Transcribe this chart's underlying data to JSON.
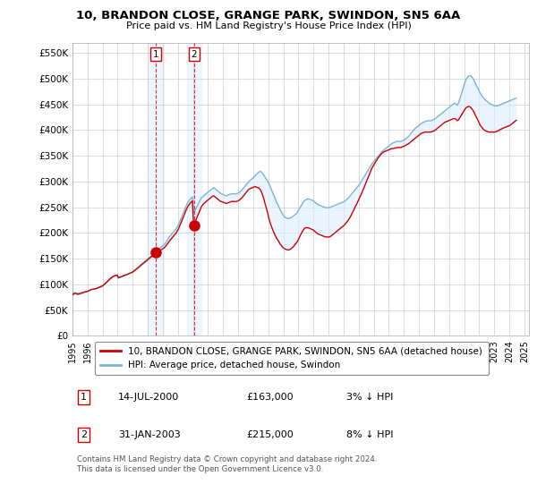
{
  "title": "10, BRANDON CLOSE, GRANGE PARK, SWINDON, SN5 6AA",
  "subtitle": "Price paid vs. HM Land Registry's House Price Index (HPI)",
  "yticks": [
    0,
    50000,
    100000,
    150000,
    200000,
    250000,
    300000,
    350000,
    400000,
    450000,
    500000,
    550000
  ],
  "ylim": [
    0,
    570000
  ],
  "xlim_start": 1995.0,
  "xlim_end": 2025.3,
  "hpi_color": "#7ab3d4",
  "price_color": "#cc0000",
  "bg_color": "#ffffff",
  "grid_color": "#cccccc",
  "shade_color": "#ddeeff",
  "transactions": [
    {
      "label": "1",
      "date_num": 2000.54,
      "price": 163000,
      "date_str": "14-JUL-2000",
      "pct": "3%",
      "direction": "↓"
    },
    {
      "label": "2",
      "date_num": 2003.08,
      "price": 215000,
      "date_str": "31-JAN-2003",
      "pct": "8%",
      "direction": "↓"
    }
  ],
  "legend_entries": [
    {
      "label": "10, BRANDON CLOSE, GRANGE PARK, SWINDON, SN5 6AA (detached house)",
      "color": "#cc0000"
    },
    {
      "label": "HPI: Average price, detached house, Swindon",
      "color": "#7ab3d4"
    }
  ],
  "footer": "Contains HM Land Registry data © Crown copyright and database right 2024.\nThis data is licensed under the Open Government Licence v3.0.",
  "hpi_years": [
    1995.04,
    1995.12,
    1995.21,
    1995.29,
    1995.38,
    1995.46,
    1995.54,
    1995.63,
    1995.71,
    1995.79,
    1995.88,
    1995.96,
    1996.04,
    1996.12,
    1996.21,
    1996.29,
    1996.38,
    1996.46,
    1996.54,
    1996.63,
    1996.71,
    1996.79,
    1996.88,
    1996.96,
    1997.04,
    1997.12,
    1997.21,
    1997.29,
    1997.38,
    1997.46,
    1997.54,
    1997.63,
    1997.71,
    1997.79,
    1997.88,
    1997.96,
    1998.04,
    1998.12,
    1998.21,
    1998.29,
    1998.38,
    1998.46,
    1998.54,
    1998.63,
    1998.71,
    1998.79,
    1998.88,
    1998.96,
    1999.04,
    1999.12,
    1999.21,
    1999.29,
    1999.38,
    1999.46,
    1999.54,
    1999.63,
    1999.71,
    1999.79,
    1999.88,
    1999.96,
    2000.04,
    2000.12,
    2000.21,
    2000.29,
    2000.38,
    2000.46,
    2000.54,
    2000.63,
    2000.71,
    2000.79,
    2000.88,
    2000.96,
    2001.04,
    2001.12,
    2001.21,
    2001.29,
    2001.38,
    2001.46,
    2001.54,
    2001.63,
    2001.71,
    2001.79,
    2001.88,
    2001.96,
    2002.04,
    2002.12,
    2002.21,
    2002.29,
    2002.38,
    2002.46,
    2002.54,
    2002.63,
    2002.71,
    2002.79,
    2002.88,
    2002.96,
    2003.04,
    2003.12,
    2003.21,
    2003.29,
    2003.38,
    2003.46,
    2003.54,
    2003.63,
    2003.71,
    2003.79,
    2003.88,
    2003.96,
    2004.04,
    2004.12,
    2004.21,
    2004.29,
    2004.38,
    2004.46,
    2004.54,
    2004.63,
    2004.71,
    2004.79,
    2004.88,
    2004.96,
    2005.04,
    2005.12,
    2005.21,
    2005.29,
    2005.38,
    2005.46,
    2005.54,
    2005.63,
    2005.71,
    2005.79,
    2005.88,
    2005.96,
    2006.04,
    2006.12,
    2006.21,
    2006.29,
    2006.38,
    2006.46,
    2006.54,
    2006.63,
    2006.71,
    2006.79,
    2006.88,
    2006.96,
    2007.04,
    2007.12,
    2007.21,
    2007.29,
    2007.38,
    2007.46,
    2007.54,
    2007.63,
    2007.71,
    2007.79,
    2007.88,
    2007.96,
    2008.04,
    2008.12,
    2008.21,
    2008.29,
    2008.38,
    2008.46,
    2008.54,
    2008.63,
    2008.71,
    2008.79,
    2008.88,
    2008.96,
    2009.04,
    2009.12,
    2009.21,
    2009.29,
    2009.38,
    2009.46,
    2009.54,
    2009.63,
    2009.71,
    2009.79,
    2009.88,
    2009.96,
    2010.04,
    2010.12,
    2010.21,
    2010.29,
    2010.38,
    2010.46,
    2010.54,
    2010.63,
    2010.71,
    2010.79,
    2010.88,
    2010.96,
    2011.04,
    2011.12,
    2011.21,
    2011.29,
    2011.38,
    2011.46,
    2011.54,
    2011.63,
    2011.71,
    2011.79,
    2011.88,
    2011.96,
    2012.04,
    2012.12,
    2012.21,
    2012.29,
    2012.38,
    2012.46,
    2012.54,
    2012.63,
    2012.71,
    2012.79,
    2012.88,
    2012.96,
    2013.04,
    2013.12,
    2013.21,
    2013.29,
    2013.38,
    2013.46,
    2013.54,
    2013.63,
    2013.71,
    2013.79,
    2013.88,
    2013.96,
    2014.04,
    2014.12,
    2014.21,
    2014.29,
    2014.38,
    2014.46,
    2014.54,
    2014.63,
    2014.71,
    2014.79,
    2014.88,
    2014.96,
    2015.04,
    2015.12,
    2015.21,
    2015.29,
    2015.38,
    2015.46,
    2015.54,
    2015.63,
    2015.71,
    2015.79,
    2015.88,
    2015.96,
    2016.04,
    2016.12,
    2016.21,
    2016.29,
    2016.38,
    2016.46,
    2016.54,
    2016.63,
    2016.71,
    2016.79,
    2016.88,
    2016.96,
    2017.04,
    2017.12,
    2017.21,
    2017.29,
    2017.38,
    2017.46,
    2017.54,
    2017.63,
    2017.71,
    2017.79,
    2017.88,
    2017.96,
    2018.04,
    2018.12,
    2018.21,
    2018.29,
    2018.38,
    2018.46,
    2018.54,
    2018.63,
    2018.71,
    2018.79,
    2018.88,
    2018.96,
    2019.04,
    2019.12,
    2019.21,
    2019.29,
    2019.38,
    2019.46,
    2019.54,
    2019.63,
    2019.71,
    2019.79,
    2019.88,
    2019.96,
    2020.04,
    2020.12,
    2020.21,
    2020.29,
    2020.38,
    2020.46,
    2020.54,
    2020.63,
    2020.71,
    2020.79,
    2020.88,
    2020.96,
    2021.04,
    2021.12,
    2021.21,
    2021.29,
    2021.38,
    2021.46,
    2021.54,
    2021.63,
    2021.71,
    2021.79,
    2021.88,
    2021.96,
    2022.04,
    2022.12,
    2022.21,
    2022.29,
    2022.38,
    2022.46,
    2022.54,
    2022.63,
    2022.71,
    2022.79,
    2022.88,
    2022.96,
    2023.04,
    2023.12,
    2023.21,
    2023.29,
    2023.38,
    2023.46,
    2023.54,
    2023.63,
    2023.71,
    2023.79,
    2023.88,
    2023.96,
    2024.04,
    2024.12,
    2024.21,
    2024.29,
    2024.38,
    2024.46
  ],
  "hpi_vals": [
    83000,
    84000,
    83500,
    83000,
    82500,
    83000,
    83500,
    84000,
    84500,
    85000,
    85500,
    86000,
    87000,
    88000,
    89000,
    90000,
    90500,
    91000,
    91500,
    92000,
    93000,
    94000,
    95000,
    96000,
    98000,
    100000,
    102000,
    104000,
    107000,
    109000,
    111000,
    113000,
    115000,
    116000,
    117000,
    118000,
    112000,
    113000,
    114000,
    115000,
    116000,
    117000,
    118000,
    119000,
    120000,
    121000,
    122000,
    123000,
    124000,
    126000,
    128000,
    130000,
    132000,
    134000,
    136000,
    138000,
    140000,
    142000,
    144000,
    146000,
    148000,
    150000,
    152000,
    154000,
    157000,
    160000,
    163000,
    166000,
    168000,
    170000,
    172000,
    174000,
    176000,
    178000,
    182000,
    186000,
    190000,
    193000,
    196000,
    199000,
    202000,
    205000,
    208000,
    212000,
    216000,
    222000,
    228000,
    234000,
    240000,
    246000,
    252000,
    258000,
    262000,
    265000,
    268000,
    270000,
    240000,
    243000,
    248000,
    253000,
    258000,
    263000,
    268000,
    270000,
    272000,
    274000,
    276000,
    278000,
    280000,
    282000,
    284000,
    286000,
    288000,
    286000,
    284000,
    282000,
    280000,
    278000,
    276000,
    275000,
    274000,
    273000,
    272000,
    273000,
    274000,
    275000,
    276000,
    276000,
    276000,
    276000,
    276000,
    277000,
    278000,
    280000,
    282000,
    285000,
    288000,
    291000,
    294000,
    297000,
    300000,
    302000,
    304000,
    306000,
    308000,
    311000,
    314000,
    316000,
    318000,
    320000,
    318000,
    315000,
    312000,
    308000,
    304000,
    300000,
    296000,
    290000,
    284000,
    278000,
    272000,
    266000,
    260000,
    255000,
    250000,
    245000,
    240000,
    236000,
    232000,
    230000,
    229000,
    228000,
    228000,
    229000,
    230000,
    232000,
    234000,
    236000,
    238000,
    242000,
    246000,
    250000,
    254000,
    258000,
    262000,
    264000,
    265000,
    266000,
    266000,
    265000,
    264000,
    263000,
    261000,
    259000,
    257000,
    255000,
    254000,
    253000,
    252000,
    251000,
    250000,
    249000,
    249000,
    249000,
    249000,
    250000,
    251000,
    252000,
    253000,
    254000,
    255000,
    256000,
    257000,
    258000,
    259000,
    260000,
    261000,
    263000,
    265000,
    267000,
    270000,
    273000,
    276000,
    279000,
    282000,
    285000,
    288000,
    291000,
    294000,
    298000,
    302000,
    306000,
    310000,
    314000,
    318000,
    322000,
    326000,
    330000,
    334000,
    337000,
    340000,
    343000,
    346000,
    349000,
    352000,
    355000,
    358000,
    360000,
    362000,
    364000,
    366000,
    368000,
    370000,
    372000,
    374000,
    375000,
    376000,
    377000,
    378000,
    378000,
    378000,
    378000,
    379000,
    380000,
    381000,
    383000,
    385000,
    387000,
    390000,
    393000,
    396000,
    399000,
    402000,
    404000,
    406000,
    408000,
    410000,
    412000,
    414000,
    415000,
    416000,
    417000,
    418000,
    418000,
    418000,
    418000,
    419000,
    420000,
    421000,
    423000,
    425000,
    427000,
    429000,
    431000,
    433000,
    435000,
    437000,
    439000,
    441000,
    443000,
    445000,
    447000,
    449000,
    451000,
    452000,
    451000,
    448000,
    453000,
    460000,
    468000,
    476000,
    484000,
    492000,
    498000,
    502000,
    505000,
    506000,
    505000,
    502000,
    498000,
    493000,
    488000,
    483000,
    478000,
    473000,
    469000,
    465000,
    462000,
    459000,
    457000,
    455000,
    453000,
    451000,
    450000,
    449000,
    448000,
    447000,
    447000,
    447000,
    448000,
    449000,
    450000,
    451000,
    452000,
    453000,
    454000,
    455000,
    456000,
    457000,
    458000,
    459000,
    460000,
    461000,
    462000
  ],
  "price_years": [
    1995.04,
    1995.12,
    1995.21,
    1995.29,
    1995.38,
    1995.46,
    1995.54,
    1995.63,
    1995.71,
    1995.79,
    1995.88,
    1995.96,
    1996.04,
    1996.12,
    1996.21,
    1996.29,
    1996.38,
    1996.46,
    1996.54,
    1996.63,
    1996.71,
    1996.79,
    1996.88,
    1996.96,
    1997.04,
    1997.12,
    1997.21,
    1997.29,
    1997.38,
    1997.46,
    1997.54,
    1997.63,
    1997.71,
    1997.79,
    1997.88,
    1997.96,
    1998.04,
    1998.12,
    1998.21,
    1998.29,
    1998.38,
    1998.46,
    1998.54,
    1998.63,
    1998.71,
    1998.79,
    1998.88,
    1998.96,
    1999.04,
    1999.12,
    1999.21,
    1999.29,
    1999.38,
    1999.46,
    1999.54,
    1999.63,
    1999.71,
    1999.79,
    1999.88,
    1999.96,
    2000.04,
    2000.12,
    2000.21,
    2000.29,
    2000.38,
    2000.46,
    2000.54,
    2000.63,
    2000.71,
    2000.79,
    2000.88,
    2000.96,
    2001.04,
    2001.12,
    2001.21,
    2001.29,
    2001.38,
    2001.46,
    2001.54,
    2001.63,
    2001.71,
    2001.79,
    2001.88,
    2001.96,
    2002.04,
    2002.12,
    2002.21,
    2002.29,
    2002.38,
    2002.46,
    2002.54,
    2002.63,
    2002.71,
    2002.79,
    2002.88,
    2002.96,
    2003.04,
    2003.12,
    2003.21,
    2003.29,
    2003.38,
    2003.46,
    2003.54,
    2003.63,
    2003.71,
    2003.79,
    2003.88,
    2003.96,
    2004.04,
    2004.12,
    2004.21,
    2004.29,
    2004.38,
    2004.46,
    2004.54,
    2004.63,
    2004.71,
    2004.79,
    2004.88,
    2004.96,
    2005.04,
    2005.12,
    2005.21,
    2005.29,
    2005.38,
    2005.46,
    2005.54,
    2005.63,
    2005.71,
    2005.79,
    2005.88,
    2005.96,
    2006.04,
    2006.12,
    2006.21,
    2006.29,
    2006.38,
    2006.46,
    2006.54,
    2006.63,
    2006.71,
    2006.79,
    2006.88,
    2006.96,
    2007.04,
    2007.12,
    2007.21,
    2007.29,
    2007.38,
    2007.46,
    2007.54,
    2007.63,
    2007.71,
    2007.79,
    2007.88,
    2007.96,
    2008.04,
    2008.12,
    2008.21,
    2008.29,
    2008.38,
    2008.46,
    2008.54,
    2008.63,
    2008.71,
    2008.79,
    2008.88,
    2008.96,
    2009.04,
    2009.12,
    2009.21,
    2009.29,
    2009.38,
    2009.46,
    2009.54,
    2009.63,
    2009.71,
    2009.79,
    2009.88,
    2009.96,
    2010.04,
    2010.12,
    2010.21,
    2010.29,
    2010.38,
    2010.46,
    2010.54,
    2010.63,
    2010.71,
    2010.79,
    2010.88,
    2010.96,
    2011.04,
    2011.12,
    2011.21,
    2011.29,
    2011.38,
    2011.46,
    2011.54,
    2011.63,
    2011.71,
    2011.79,
    2011.88,
    2011.96,
    2012.04,
    2012.12,
    2012.21,
    2012.29,
    2012.38,
    2012.46,
    2012.54,
    2012.63,
    2012.71,
    2012.79,
    2012.88,
    2012.96,
    2013.04,
    2013.12,
    2013.21,
    2013.29,
    2013.38,
    2013.46,
    2013.54,
    2013.63,
    2013.71,
    2013.79,
    2013.88,
    2013.96,
    2014.04,
    2014.12,
    2014.21,
    2014.29,
    2014.38,
    2014.46,
    2014.54,
    2014.63,
    2014.71,
    2014.79,
    2014.88,
    2014.96,
    2015.04,
    2015.12,
    2015.21,
    2015.29,
    2015.38,
    2015.46,
    2015.54,
    2015.63,
    2015.71,
    2015.79,
    2015.88,
    2015.96,
    2016.04,
    2016.12,
    2016.21,
    2016.29,
    2016.38,
    2016.46,
    2016.54,
    2016.63,
    2016.71,
    2016.79,
    2016.88,
    2016.96,
    2017.04,
    2017.12,
    2017.21,
    2017.29,
    2017.38,
    2017.46,
    2017.54,
    2017.63,
    2017.71,
    2017.79,
    2017.88,
    2017.96,
    2018.04,
    2018.12,
    2018.21,
    2018.29,
    2018.38,
    2018.46,
    2018.54,
    2018.63,
    2018.71,
    2018.79,
    2018.88,
    2018.96,
    2019.04,
    2019.12,
    2019.21,
    2019.29,
    2019.38,
    2019.46,
    2019.54,
    2019.63,
    2019.71,
    2019.79,
    2019.88,
    2019.96,
    2020.04,
    2020.12,
    2020.21,
    2020.29,
    2020.38,
    2020.46,
    2020.54,
    2020.63,
    2020.71,
    2020.79,
    2020.88,
    2020.96,
    2021.04,
    2021.12,
    2021.21,
    2021.29,
    2021.38,
    2021.46,
    2021.54,
    2021.63,
    2021.71,
    2021.79,
    2021.88,
    2021.96,
    2022.04,
    2022.12,
    2022.21,
    2022.29,
    2022.38,
    2022.46,
    2022.54,
    2022.63,
    2022.71,
    2022.79,
    2022.88,
    2022.96,
    2023.04,
    2023.12,
    2023.21,
    2023.29,
    2023.38,
    2023.46,
    2023.54,
    2023.63,
    2023.71,
    2023.79,
    2023.88,
    2023.96,
    2024.04,
    2024.12,
    2024.21,
    2024.29,
    2024.38,
    2024.46
  ],
  "price_vals": [
    80000,
    82000,
    82500,
    81000,
    80500,
    81500,
    82000,
    83000,
    84000,
    85000,
    85500,
    86000,
    87000,
    88000,
    89500,
    90000,
    90500,
    91000,
    91500,
    92500,
    93500,
    94500,
    95500,
    96500,
    98000,
    100000,
    102500,
    105000,
    107500,
    110000,
    112000,
    114000,
    115500,
    116500,
    117500,
    118000,
    113000,
    113500,
    114500,
    115500,
    116500,
    117500,
    118500,
    119000,
    120500,
    121500,
    122500,
    123500,
    125000,
    127000,
    129000,
    131000,
    133000,
    135000,
    137500,
    139500,
    141500,
    143500,
    145500,
    147500,
    149500,
    151500,
    153500,
    155500,
    157500,
    160000,
    163000,
    164000,
    165000,
    166000,
    167000,
    168500,
    170000,
    172000,
    175000,
    178000,
    182000,
    185000,
    188000,
    191000,
    194000,
    197000,
    200000,
    204000,
    208000,
    214000,
    220000,
    226000,
    232000,
    238000,
    244000,
    250000,
    254000,
    257000,
    260000,
    262000,
    215000,
    220000,
    226000,
    232000,
    238000,
    244000,
    250000,
    254000,
    257000,
    259000,
    261000,
    263000,
    265000,
    267000,
    269000,
    271000,
    272000,
    270000,
    268000,
    266000,
    264000,
    262000,
    261000,
    260000,
    259000,
    258000,
    257000,
    258000,
    259000,
    260000,
    261000,
    261000,
    261000,
    261000,
    261000,
    262000,
    263000,
    265000,
    267000,
    270000,
    273000,
    276000,
    279000,
    282000,
    285000,
    286000,
    287000,
    288000,
    289000,
    290000,
    289000,
    288000,
    287000,
    284000,
    280000,
    273000,
    265000,
    256000,
    247000,
    238000,
    228000,
    220000,
    212000,
    206000,
    200000,
    195000,
    190000,
    186000,
    182000,
    178000,
    175000,
    172000,
    170000,
    168500,
    167500,
    167000,
    167000,
    168000,
    170000,
    172000,
    175000,
    178000,
    181000,
    185000,
    190000,
    195000,
    200000,
    204000,
    208000,
    210000,
    210000,
    210000,
    209000,
    208000,
    207000,
    206000,
    204000,
    202000,
    200000,
    198000,
    197000,
    196000,
    195000,
    194000,
    193000,
    192000,
    192000,
    192000,
    192000,
    193000,
    195000,
    197000,
    199000,
    201000,
    203000,
    205000,
    207000,
    209000,
    211000,
    213000,
    215000,
    218000,
    221000,
    224000,
    228000,
    232000,
    237000,
    242000,
    247000,
    252000,
    257000,
    262000,
    267000,
    272000,
    278000,
    284000,
    290000,
    296000,
    302000,
    308000,
    314000,
    320000,
    326000,
    330000,
    334000,
    338000,
    342000,
    346000,
    349000,
    352000,
    355000,
    357000,
    358000,
    359000,
    360000,
    361000,
    362000,
    363000,
    364000,
    364000,
    365000,
    365000,
    366000,
    366000,
    366000,
    366000,
    367000,
    368000,
    369000,
    370000,
    372000,
    373000,
    375000,
    377000,
    379000,
    381000,
    383000,
    385000,
    387000,
    389000,
    391000,
    393000,
    394000,
    395000,
    396000,
    396000,
    396000,
    396000,
    396000,
    396000,
    397000,
    398000,
    399000,
    401000,
    403000,
    405000,
    407000,
    409000,
    411000,
    413000,
    415000,
    416000,
    417000,
    418000,
    419000,
    420000,
    421000,
    422000,
    422000,
    421000,
    418000,
    420000,
    424000,
    428000,
    432000,
    436000,
    440000,
    443000,
    445000,
    446000,
    445000,
    443000,
    440000,
    436000,
    431000,
    426000,
    421000,
    416000,
    411000,
    407000,
    404000,
    401000,
    399000,
    398000,
    397000,
    396000,
    396000,
    396000,
    396000,
    396000,
    396000,
    397000,
    398000,
    399000,
    401000,
    402000,
    403000,
    404000,
    405000,
    406000,
    407000,
    408000,
    409000,
    411000,
    413000,
    415000,
    417000,
    419000
  ]
}
